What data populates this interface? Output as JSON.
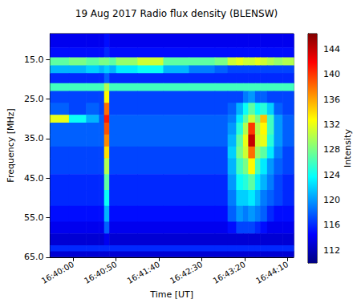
{
  "chart_data": {
    "type": "heatmap",
    "title": "19 Aug 2017 Radio flux density (BLENSW)",
    "xlabel": "Time [UT]",
    "ylabel": "Frequency [MHz]",
    "colorbar_label": "Intensity",
    "grid": false,
    "xlim": [
      "16:39:33",
      "16:44:17"
    ],
    "ylim": [
      65,
      8.5
    ],
    "xticks": [
      "16:40:00",
      "16:40:50",
      "16:41:40",
      "16:42:30",
      "16:43:20",
      "16:44:10"
    ],
    "yticks": [
      {
        "value": 15,
        "label": "15.0"
      },
      {
        "value": 25,
        "label": "25.0"
      },
      {
        "value": 35,
        "label": "35.0"
      },
      {
        "value": 45,
        "label": "45.0"
      },
      {
        "value": 55,
        "label": "55.0"
      },
      {
        "value": 65,
        "label": "65.0"
      }
    ],
    "clim": [
      110,
      146.5
    ],
    "cticks": [
      112,
      116,
      120,
      124,
      128,
      132,
      136,
      140,
      144
    ],
    "x_edges": [
      "16:39:33",
      "16:39:55",
      "16:40:15",
      "16:40:30",
      "16:40:36",
      "16:40:42",
      "16:40:50",
      "16:41:15",
      "16:41:45",
      "16:42:15",
      "16:42:45",
      "16:43:00",
      "16:43:10",
      "16:43:18",
      "16:43:24",
      "16:43:32",
      "16:43:38",
      "16:43:46",
      "16:43:54",
      "16:44:04",
      "16:44:17"
    ],
    "y_edges": [
      8.5,
      12,
      14.5,
      16.5,
      18.5,
      21,
      23,
      26,
      29,
      31,
      34,
      37,
      40,
      44,
      48,
      52,
      56,
      59,
      62,
      63.5,
      65
    ],
    "cells": [
      [
        114,
        114,
        114,
        114,
        115,
        114,
        114,
        114,
        114,
        114,
        114,
        114,
        114,
        114,
        114,
        114,
        114,
        114,
        114,
        114
      ],
      [
        115,
        115,
        115,
        115,
        116,
        115,
        115,
        115,
        115,
        115,
        115,
        115,
        115,
        115,
        115,
        115,
        115,
        115,
        115,
        115
      ],
      [
        127,
        128,
        127,
        128,
        128,
        127,
        129,
        131,
        127,
        127,
        128,
        131,
        132,
        131,
        131,
        132,
        131,
        130,
        129,
        130
      ],
      [
        121,
        121,
        122,
        121,
        122,
        121,
        123,
        124,
        121,
        119,
        118,
        117,
        117,
        117,
        117,
        117,
        117,
        117,
        117,
        117
      ],
      [
        116,
        116,
        116,
        116,
        118,
        116,
        116,
        116,
        116,
        116,
        116,
        116,
        116,
        116,
        116,
        116,
        116,
        116,
        116,
        116
      ],
      [
        126,
        126,
        126,
        126,
        130,
        126,
        126,
        126,
        126,
        126,
        126,
        126,
        126,
        126,
        126,
        126,
        126,
        126,
        126,
        126
      ],
      [
        117,
        117,
        117,
        117,
        133,
        117,
        117,
        117,
        117,
        117,
        117,
        117,
        117,
        119,
        120,
        118,
        118,
        117,
        117,
        117
      ],
      [
        118,
        117,
        118,
        117,
        138,
        117,
        117,
        117,
        117,
        117,
        117,
        118,
        121,
        124,
        127,
        124,
        125,
        122,
        118,
        117
      ],
      [
        132,
        124,
        121,
        118,
        141,
        118,
        118,
        118,
        118,
        118,
        118,
        119,
        123,
        127,
        131,
        128,
        135,
        126,
        120,
        118
      ],
      [
        118,
        118,
        118,
        118,
        139,
        118,
        118,
        118,
        118,
        118,
        118,
        120,
        125,
        130,
        140,
        130,
        133,
        126,
        120,
        118
      ],
      [
        118,
        118,
        118,
        118,
        137,
        118,
        118,
        118,
        118,
        118,
        118,
        121,
        127,
        132,
        144,
        131,
        132,
        125,
        120,
        118
      ],
      [
        117,
        117,
        117,
        117,
        134,
        117,
        117,
        117,
        117,
        117,
        117,
        122,
        128,
        131,
        138,
        129,
        127,
        123,
        119,
        117
      ],
      [
        117,
        117,
        117,
        117,
        130,
        117,
        117,
        117,
        117,
        117,
        117,
        121,
        126,
        128,
        133,
        126,
        123,
        120,
        118,
        117
      ],
      [
        116,
        116,
        116,
        116,
        127,
        116,
        116,
        116,
        116,
        116,
        116,
        120,
        124,
        125,
        127,
        123,
        121,
        119,
        117,
        116
      ],
      [
        116,
        116,
        116,
        116,
        124,
        116,
        116,
        116,
        116,
        116,
        116,
        119,
        122,
        122,
        123,
        121,
        119,
        118,
        117,
        116
      ],
      [
        115,
        115,
        115,
        115,
        121,
        115,
        115,
        115,
        115,
        115,
        115,
        118,
        120,
        119,
        120,
        119,
        118,
        116,
        115,
        115
      ],
      [
        114,
        114,
        114,
        114,
        118,
        114,
        114,
        114,
        114,
        114,
        114,
        115,
        117,
        117,
        117,
        116,
        115,
        114,
        114,
        114
      ],
      [
        113,
        113,
        113,
        113,
        114,
        113,
        113,
        113,
        113,
        113,
        113,
        113,
        113,
        113,
        113,
        113,
        113,
        113,
        113,
        113
      ],
      [
        116,
        116,
        116,
        116,
        116,
        116,
        116,
        116,
        116,
        116,
        116,
        116,
        116,
        116,
        116,
        116,
        116,
        116,
        116,
        116
      ],
      [
        113,
        113,
        113,
        113,
        113,
        113,
        113,
        113,
        113,
        113,
        113,
        113,
        113,
        113,
        113,
        113,
        113,
        113,
        113,
        113
      ]
    ]
  }
}
